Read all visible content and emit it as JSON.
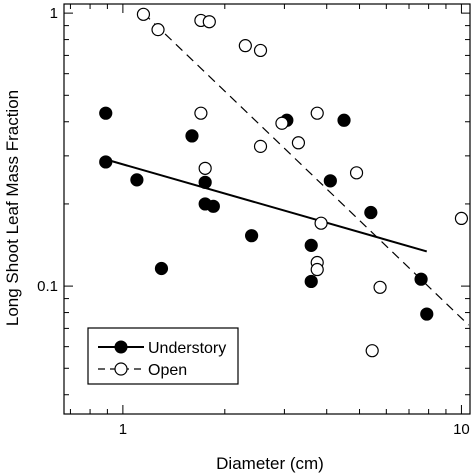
{
  "chart_data": {
    "type": "scatter",
    "title": "",
    "xlabel": "Diameter (cm)",
    "ylabel": "Long Shoot Leaf Mass Fraction",
    "xscale": "log",
    "yscale": "log",
    "xlim": [
      0.67,
      10.6
    ],
    "ylim": [
      0.034,
      1.08
    ],
    "x_tick_labels": [
      {
        "value": 1,
        "label": "1"
      },
      {
        "value": 10,
        "label": "10"
      }
    ],
    "y_tick_labels": [
      {
        "value": 0.1,
        "label": "0.1"
      },
      {
        "value": 1,
        "label": "1"
      }
    ],
    "grid": false,
    "legend_position": "bottom-left",
    "series": [
      {
        "name": "Understory",
        "marker": "filled-circle",
        "line": "solid",
        "color": "#000000",
        "points": [
          {
            "x": 0.89,
            "y": 0.43
          },
          {
            "x": 0.89,
            "y": 0.285
          },
          {
            "x": 1.1,
            "y": 0.245
          },
          {
            "x": 1.3,
            "y": 0.116
          },
          {
            "x": 1.6,
            "y": 0.355
          },
          {
            "x": 1.75,
            "y": 0.24
          },
          {
            "x": 1.75,
            "y": 0.2
          },
          {
            "x": 1.85,
            "y": 0.196
          },
          {
            "x": 2.4,
            "y": 0.153
          },
          {
            "x": 3.05,
            "y": 0.405
          },
          {
            "x": 3.6,
            "y": 0.141
          },
          {
            "x": 3.6,
            "y": 0.104
          },
          {
            "x": 4.1,
            "y": 0.243
          },
          {
            "x": 4.5,
            "y": 0.405
          },
          {
            "x": 5.4,
            "y": 0.186
          },
          {
            "x": 7.6,
            "y": 0.106
          },
          {
            "x": 7.9,
            "y": 0.079
          }
        ],
        "fit": {
          "x": [
            0.9,
            7.9
          ],
          "y": [
            0.29,
            0.134
          ]
        }
      },
      {
        "name": "Open",
        "marker": "open-circle",
        "line": "dashed",
        "color": "#000000",
        "points": [
          {
            "x": 1.15,
            "y": 0.99
          },
          {
            "x": 1.27,
            "y": 0.87
          },
          {
            "x": 1.7,
            "y": 0.94
          },
          {
            "x": 1.8,
            "y": 0.93
          },
          {
            "x": 2.3,
            "y": 0.76
          },
          {
            "x": 2.55,
            "y": 0.73
          },
          {
            "x": 1.7,
            "y": 0.43
          },
          {
            "x": 1.75,
            "y": 0.27
          },
          {
            "x": 2.55,
            "y": 0.325
          },
          {
            "x": 2.95,
            "y": 0.395
          },
          {
            "x": 3.3,
            "y": 0.335
          },
          {
            "x": 3.75,
            "y": 0.43
          },
          {
            "x": 3.85,
            "y": 0.17
          },
          {
            "x": 3.75,
            "y": 0.122
          },
          {
            "x": 3.75,
            "y": 0.115
          },
          {
            "x": 4.9,
            "y": 0.26
          },
          {
            "x": 5.45,
            "y": 0.058
          },
          {
            "x": 5.75,
            "y": 0.099
          },
          {
            "x": 10.0,
            "y": 0.177
          }
        ],
        "fit": {
          "x": [
            1.15,
            10.5
          ],
          "y": [
            1.0,
            0.072
          ]
        }
      }
    ]
  }
}
